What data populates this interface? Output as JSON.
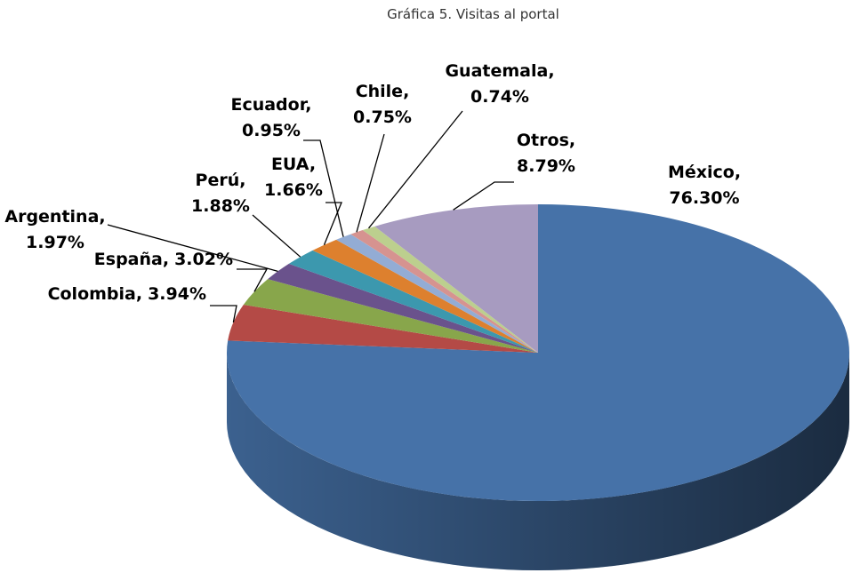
{
  "chart_data": {
    "type": "pie3d",
    "title": "Gráfica 5.  Visitas al portal",
    "categories": [
      "México,",
      "Colombia,",
      "España,",
      "Argentina,",
      "Perú,",
      "EUA,",
      "Ecuador,",
      "Chile,",
      "Guatemala,",
      "Otros,"
    ],
    "values": [
      76.3,
      3.94,
      3.02,
      1.97,
      1.88,
      1.66,
      0.95,
      0.75,
      0.74,
      8.79
    ],
    "value_labels": [
      "76.30%",
      "3.94%",
      "3.02%",
      "1.97%",
      "1.88%",
      "1.66%",
      "0.95%",
      "0.75%",
      "0.74%",
      "8.79%"
    ],
    "colors": [
      "#4672a8",
      "#b44a46",
      "#88a64b",
      "#6a528c",
      "#3c98ae",
      "#dd802e",
      "#93acd4",
      "#d69390",
      "#bccf8e",
      "#a79bc0"
    ]
  }
}
